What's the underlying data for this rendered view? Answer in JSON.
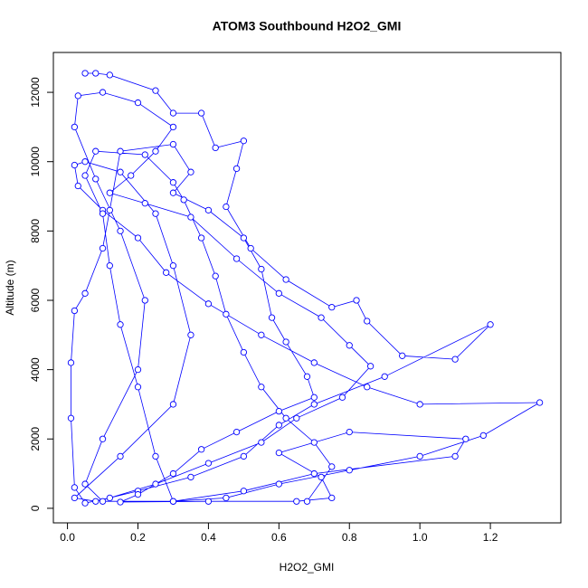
{
  "chart_data": {
    "type": "scatter",
    "title": "ATOM3 Southbound H2O2_GMI",
    "x_label": "H2O2_GMI",
    "y_label": "Altitude (m)",
    "color": "#0000ff",
    "lines": true,
    "xlim": [
      -0.04,
      1.4
    ],
    "ylim": [
      -420,
      13150
    ],
    "xticks": [
      {
        "value": 0,
        "label": "0.0"
      },
      0.2,
      0.4,
      0.6,
      0.8,
      {
        "value": 1,
        "label": "1.0"
      },
      1.2
    ],
    "yticks": [
      0,
      2000,
      4000,
      6000,
      8000,
      10000,
      12000
    ],
    "x": [
      0.05,
      0.08,
      0.12,
      0.25,
      0.3,
      0.38,
      0.42,
      0.5,
      0.48,
      0.45,
      0.52,
      0.62,
      0.75,
      0.82,
      0.85,
      0.95,
      1.1,
      1.2,
      0.9,
      0.7,
      0.6,
      0.5,
      0.35,
      0.2,
      0.08,
      0.02,
      0.15,
      0.3,
      0.35,
      0.3,
      0.25,
      0.15,
      0.05,
      0.02,
      0.03,
      0.1,
      0.2,
      0.28,
      0.4,
      0.55,
      0.7,
      0.85,
      1.0,
      1.34,
      1.18,
      1.0,
      0.8,
      0.6,
      0.45,
      0.3,
      0.1,
      0.05,
      0.1,
      0.2,
      0.22,
      0.15,
      0.08,
      0.02,
      0.03,
      0.1,
      0.2,
      0.3,
      0.25,
      0.18,
      0.12,
      0.22,
      0.35,
      0.48,
      0.6,
      0.72,
      0.8,
      0.86,
      0.78,
      0.65,
      0.55,
      0.4,
      0.25,
      0.12,
      0.05,
      0.02,
      0.01,
      0.01,
      0.02,
      0.05,
      0.1,
      0.12,
      0.15,
      0.3,
      0.35,
      0.3,
      0.4,
      0.5,
      0.55,
      0.58,
      0.62,
      0.68,
      0.7,
      0.6,
      0.48,
      0.38,
      0.3,
      0.2,
      0.15,
      0.4,
      0.65,
      0.75,
      0.72,
      0.6,
      0.8,
      1.13,
      1.1,
      0.7,
      0.5,
      0.3,
      0.25,
      0.2,
      0.15,
      0.12,
      0.1,
      0.05,
      0.08,
      0.22,
      0.3,
      0.33,
      0.38,
      0.42,
      0.45,
      0.5,
      0.55,
      0.62,
      0.7,
      0.75,
      0.68
    ],
    "values": [
      12550,
      12550,
      12500,
      12050,
      11400,
      11400,
      10400,
      10600,
      9800,
      8700,
      7500,
      6600,
      5800,
      6000,
      5400,
      4400,
      4300,
      5300,
      3800,
      3000,
      2400,
      1500,
      900,
      500,
      200,
      300,
      1500,
      3000,
      5000,
      7000,
      8500,
      9700,
      10000,
      9900,
      9300,
      8600,
      7800,
      6800,
      5900,
      5000,
      4200,
      3500,
      3000,
      3050,
      2100,
      1500,
      1100,
      700,
      300,
      200,
      200,
      700,
      2000,
      4000,
      6000,
      8000,
      9500,
      11000,
      11900,
      12000,
      11700,
      11000,
      10300,
      9600,
      9100,
      8800,
      8400,
      7200,
      6200,
      5500,
      4700,
      4100,
      3200,
      2600,
      1900,
      1300,
      700,
      300,
      150,
      600,
      2600,
      4200,
      5700,
      6200,
      7500,
      8600,
      10300,
      10500,
      9700,
      9100,
      8600,
      7800,
      6900,
      5500,
      4800,
      3800,
      3200,
      2800,
      2200,
      1700,
      1000,
      400,
      180,
      200,
      200,
      300,
      900,
      1600,
      2200,
      2000,
      1500,
      1000,
      500,
      200,
      1500,
      3500,
      5300,
      7000,
      8500,
      9600,
      10300,
      10200,
      9400,
      8900,
      7800,
      6700,
      5600,
      4500,
      3500,
      2600,
      1900,
      1200,
      200
    ]
  }
}
